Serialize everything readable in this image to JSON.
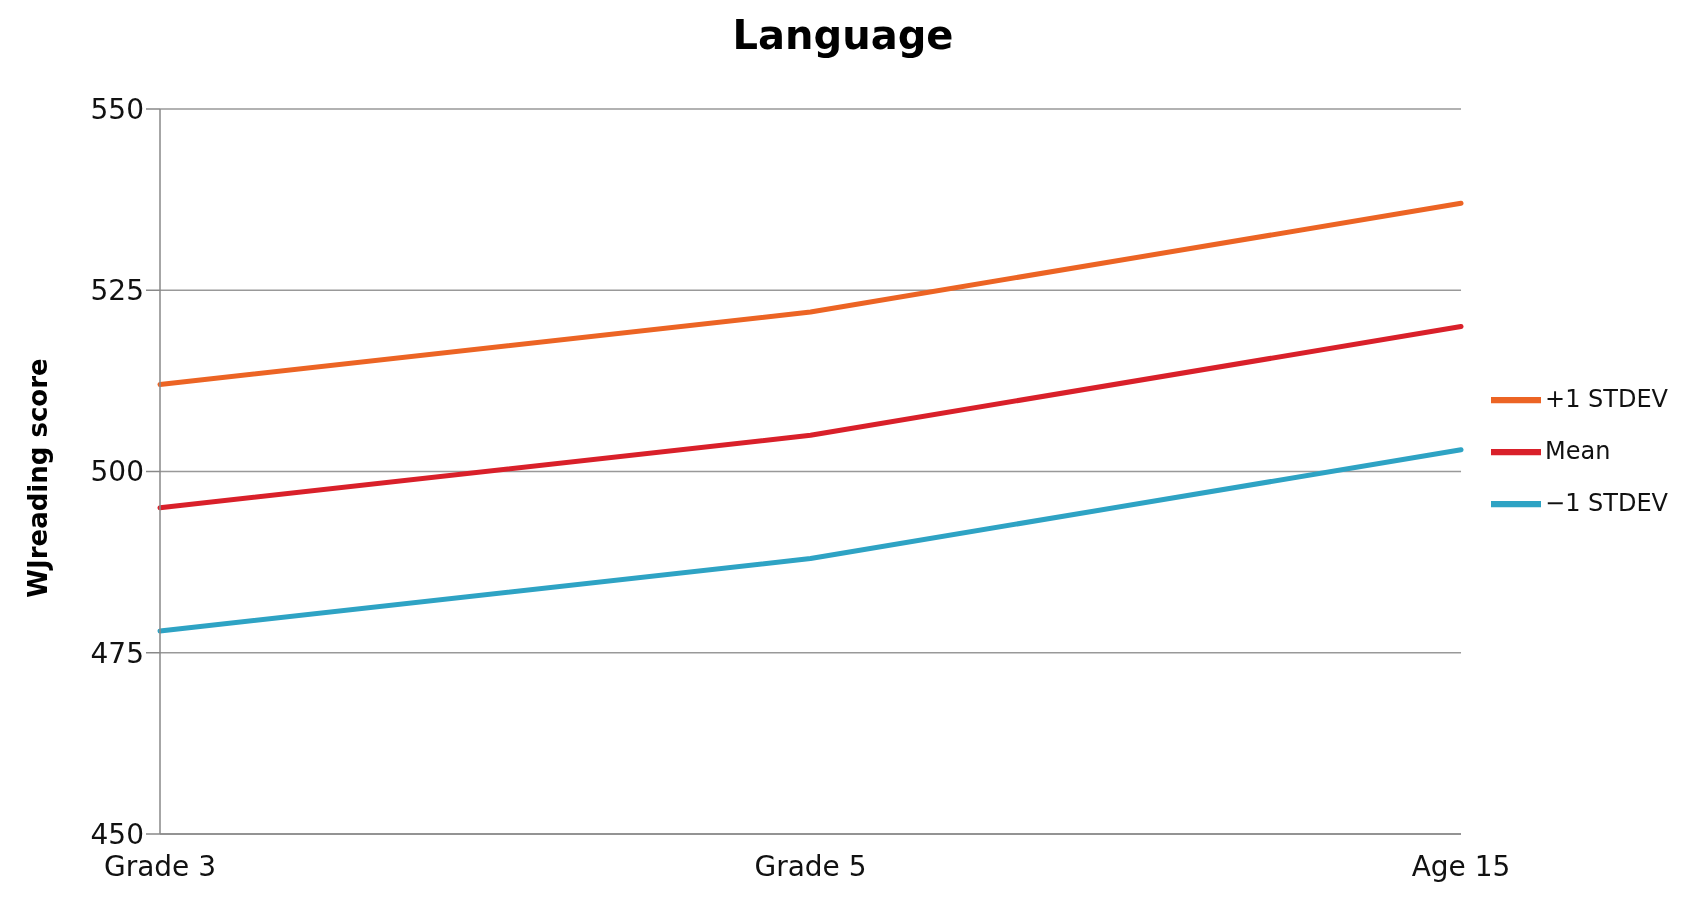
{
  "chart_data": {
    "type": "line",
    "title": "Language",
    "ylabel": "WJreading score",
    "categories": [
      "Grade 3",
      "Grade 5",
      "Age 15"
    ],
    "series": [
      {
        "name": "−1 STDEV",
        "color": "#2ea3c4",
        "values": [
          478,
          488,
          503
        ]
      },
      {
        "name": "Mean",
        "color": "#d9202a",
        "values": [
          495,
          505,
          520
        ]
      },
      {
        "name": "+1 STDEV",
        "color": "#ec6424",
        "values": [
          512,
          522,
          537
        ]
      }
    ],
    "ylim": [
      450,
      550
    ],
    "yticks": [
      450,
      475,
      500,
      525,
      550
    ],
    "grid": "y",
    "legend": "right",
    "marker": "none"
  }
}
